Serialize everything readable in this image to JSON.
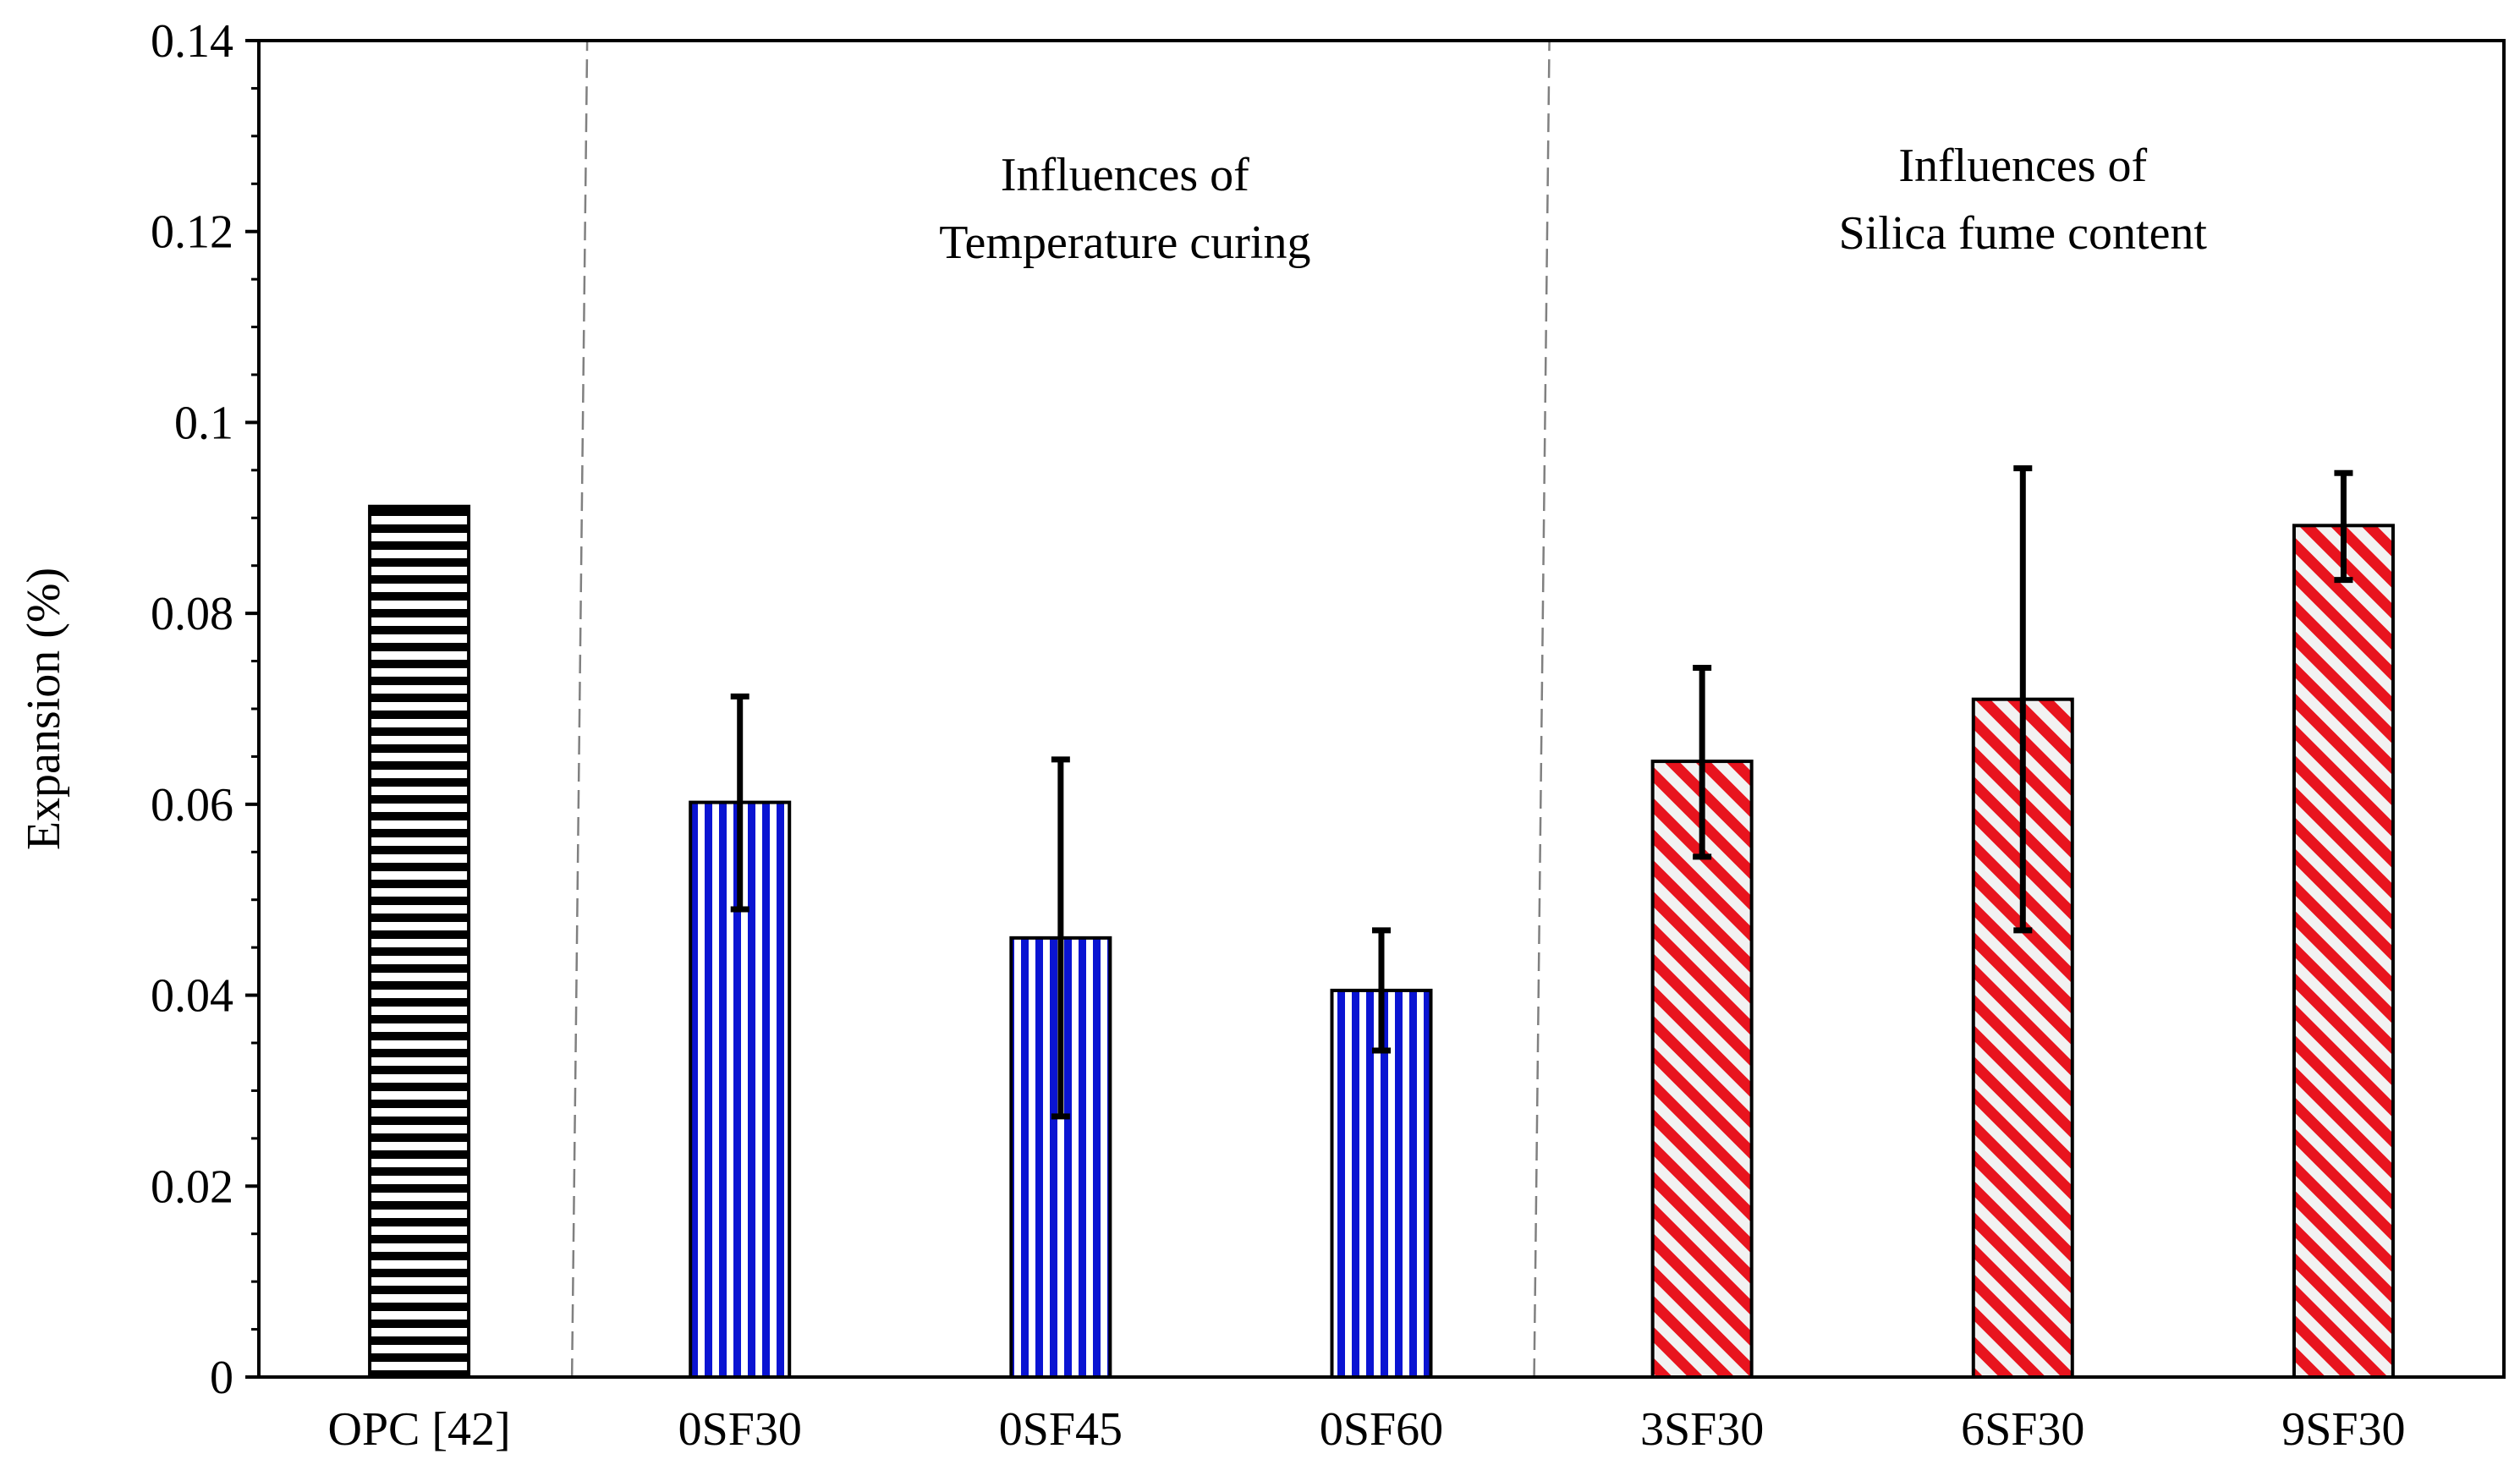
{
  "chart_data": {
    "type": "bar",
    "title": "",
    "xlabel": "",
    "ylabel": "Expansion (%)",
    "ylim": [
      0,
      0.14
    ],
    "yticks": [
      0,
      0.02,
      0.04,
      0.06,
      0.08,
      0.1,
      0.12,
      0.14
    ],
    "ytick_labels": [
      "0",
      "0.02",
      "0.04",
      "0.06",
      "0.08",
      "0.1",
      "0.12",
      "0.14"
    ],
    "grid": false,
    "categories": [
      "OPC [42]",
      "0SF30",
      "0SF45",
      "0SF60",
      "3SF30",
      "6SF30",
      "9SF30"
    ],
    "values": [
      0.0912,
      0.0602,
      0.046,
      0.0405,
      0.0645,
      0.071,
      0.0892
    ],
    "error_low": [
      null,
      0.049,
      0.0273,
      0.0342,
      0.0545,
      0.0468,
      0.0835
    ],
    "error_high": [
      null,
      0.0713,
      0.0647,
      0.0468,
      0.0743,
      0.0952,
      0.0947
    ],
    "patterns": [
      "horizontal-stripes",
      "vertical-stripes",
      "vertical-stripes",
      "vertical-stripes",
      "diagonal-stripes",
      "diagonal-stripes",
      "diagonal-stripes"
    ],
    "colors": {
      "opc": "#000000",
      "temperature": "#0a14d2",
      "silica": "#e8141e",
      "silica_bg": "#f2f2f2",
      "separator": "#808080"
    },
    "separators_after_category": [
      0,
      3
    ],
    "annotations": [
      {
        "lines": [
          "Influences of",
          "Temperature curing"
        ],
        "group": "temperature"
      },
      {
        "lines": [
          "Influences of",
          "Silica fume content"
        ],
        "group": "silica"
      }
    ]
  }
}
